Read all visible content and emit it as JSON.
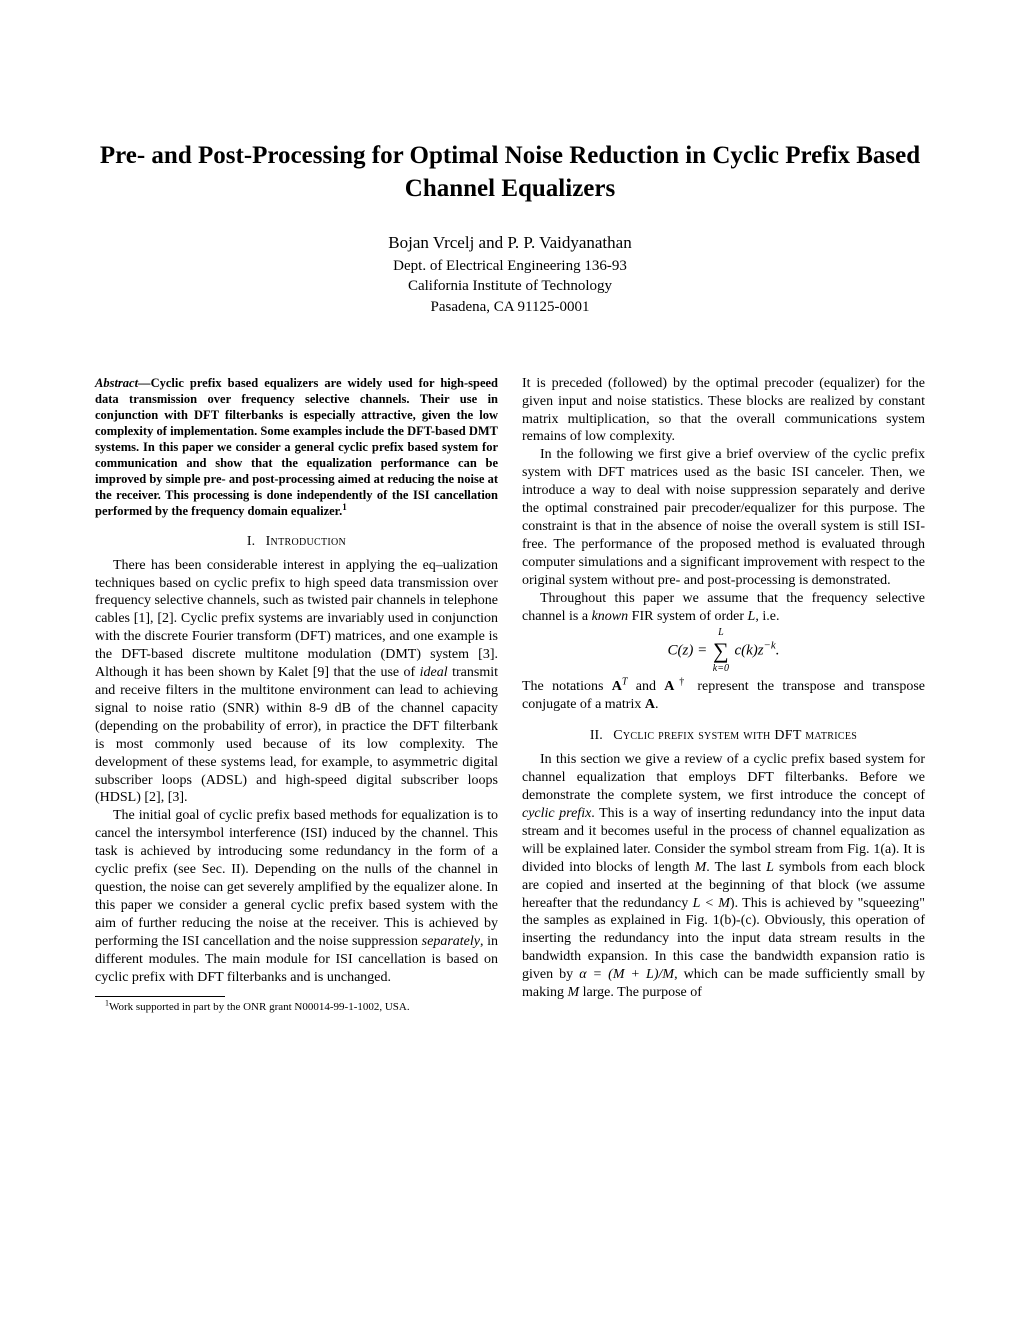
{
  "title": "Pre- and Post-Processing for Optimal Noise Reduction in Cyclic Prefix Based Channel Equalizers",
  "authors": "Bojan Vrcelj and P. P. Vaidyanathan",
  "affiliation": {
    "line1": "Dept. of Electrical Engineering 136-93",
    "line2": "California Institute of Technology",
    "line3": "Pasadena, CA 91125-0001"
  },
  "abstract": {
    "label": "Abstract—",
    "text": "Cyclic prefix based equalizers are widely used for high-speed data transmission over frequency selective channels. Their use in conjunction with DFT filterbanks is especially attractive, given the low complexity of implementation. Some examples include the DFT-based DMT systems. In this paper we consider a general cyclic prefix based system for communication and show that the equalization performance can be improved by simple pre- and post-processing aimed at reducing the noise at the receiver. This processing is done independently of the ISI cancellation performed by the frequency domain equalizer."
  },
  "sections": {
    "s1": {
      "num": "I.",
      "name": "Introduction"
    },
    "s2": {
      "num": "II.",
      "name": "Cyclic prefix system with DFT matrices"
    }
  },
  "left": {
    "p1": "There has been considerable interest in applying the eq–ualization techniques based on cyclic prefix to high speed data transmission over frequency selective channels, such as twisted pair channels in telephone cables [1], [2]. Cyclic prefix systems are invariably used in conjunction with the discrete Fourier transform (DFT) matrices, and one example is the DFT-based discrete multitone modulation (DMT) system [3]. Although it has been shown by Kalet [9] that the use of ",
    "p1_ital": "ideal",
    "p1b": " transmit and receive filters in the multitone environment can lead to achieving signal to noise ratio (SNR) within 8-9 dB of the channel capacity (depending on the probability of error), in practice the DFT filterbank is most commonly used because of its low complexity. The development of these systems lead, for example, to asymmetric digital subscriber loops (ADSL) and high-speed digital subscriber loops (HDSL) [2], [3].",
    "p2a": "The initial goal of cyclic prefix based methods for equalization is to cancel the intersymbol interference (ISI) induced by the channel. This task is achieved by introducing some redundancy in the form of a cyclic prefix (see Sec. II). Depending on the nulls of the channel in question, the noise can get severely amplified by the equalizer alone. In this paper we consider a general cyclic prefix based system with the aim of further reducing the noise at the receiver. This is achieved by performing the ISI cancellation and the noise suppression ",
    "p2_ital": "separately",
    "p2b": ", in different modules. The main module for ISI cancellation is based on cyclic prefix with DFT filterbanks and is unchanged."
  },
  "right": {
    "p1": "It is preceded (followed) by the optimal precoder (equalizer) for the given input and noise statistics. These blocks are realized by constant matrix multiplication, so that the overall communications system remains of low complexity.",
    "p2": "In the following we first give a brief overview of the cyclic prefix system with DFT matrices used as the basic ISI canceler. Then, we introduce a way to deal with noise suppression separately and derive the optimal constrained pair precoder/equalizer for this purpose. The constraint is that in the absence of noise the overall system is still ISI-free. The performance of the proposed method is evaluated through computer simulations and a significant improvement with respect to the original system without pre- and post-processing is demonstrated.",
    "p3a": "Throughout this paper we assume that the frequency selective channel is a ",
    "p3_ital": "known",
    "p3b": " FIR system of order ",
    "p3c": ", i.e.",
    "p4a": "The notations ",
    "p4b": " and ",
    "p4c": " represent the transpose and transpose conjugate of a matrix ",
    "p4d": ".",
    "p5a": "In this section we give a review of a cyclic prefix based system for channel equalization that employs DFT filterbanks. Before we demonstrate the complete system, we first introduce the concept of ",
    "p5_ital": "cyclic prefix",
    "p5b": ". This is a way of inserting redundancy into the input data stream and it becomes useful in the process of channel equalization as will be explained later. Consider the symbol stream from Fig. 1(a). It is divided into blocks of length ",
    "p5c": ". The last ",
    "p5d": " symbols from each block are copied and inserted at the beginning of that block (we assume hereafter that the redundancy ",
    "p5e": "). This is achieved by \"squeezing\" the samples as explained in Fig. 1(b)-(c). Obviously, this operation of inserting the redundancy into the input data stream results in the bandwidth expansion. In this case the bandwidth expansion ratio is given by ",
    "p5f": ", which can be made sufficiently small by making ",
    "p5g": " large. The purpose of"
  },
  "math": {
    "L": "L",
    "M": "M",
    "AT": "A",
    "alpha": "α = (M + L)/M",
    "LltM": "L < M",
    "Ceq_left": "C(z) = ",
    "Ceq_right": " c(k)z",
    "Ceq_exp": "−k",
    "sum_upper": "L",
    "sum_lower": "k=0"
  },
  "footnote": {
    "marker": "1",
    "text": "Work supported in part by the ONR grant N00014-99-1-1002, USA."
  }
}
